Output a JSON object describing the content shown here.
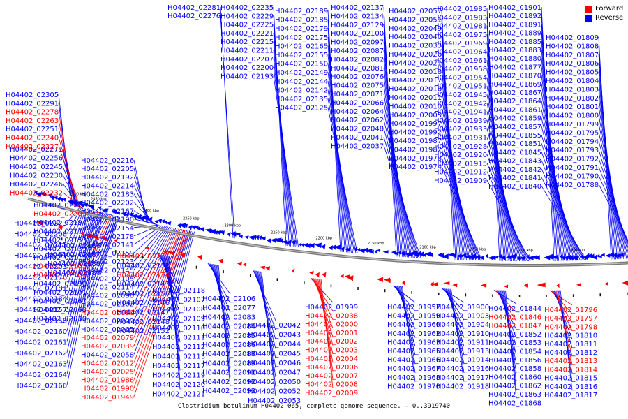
{
  "caption": "Clostridium botulinum H04402 065, complete genome sequence. - 0..3919740",
  "legend": [
    {
      "label": "Forward",
      "color": "#ff0000"
    },
    {
      "label": "Reverse",
      "color": "#0000ff"
    }
  ],
  "colors": {
    "forward": "#ff0000",
    "reverse": "#0000ff",
    "backbone": "#888888"
  },
  "scale_labels": [
    "2500 kbp",
    "2450 kbp",
    "2400 kbp",
    "2350 kbp",
    "2300 kbp",
    "2250 kbp",
    "2200 kbp",
    "2150 kbp",
    "2100 kbp",
    "2050 kbp",
    "2000 kbp",
    "1950 kbp"
  ],
  "label_columns": [
    [
      "H04402_02281",
      "H04402_02276"
    ],
    [
      "H04402_02235",
      "H04402_02229",
      "H04402_02225",
      "H04402_02221",
      "H04402_02215",
      "H04402_02211",
      "H04402_02207",
      "H04402_02200",
      "H04402_02193"
    ],
    [
      "H04402_02189",
      "H04402_02185",
      "H04402_02179",
      "H04402_02175",
      "H04402_02165",
      "H04402_02155",
      "H04402_02150",
      "H04402_02149",
      "H04402_02144",
      "H04402_02142",
      "H04402_02135",
      "H04402_02125"
    ],
    [
      "H04402_02137",
      "H04402_02134",
      "H04402_02129",
      "H04402_02100",
      "H04402_02097",
      "H04402_02087",
      "H04402_02082",
      "H04402_02081",
      "H04402_02076",
      "H04402_02075",
      "H04402_02071",
      "H04402_02066",
      "H04402_02064",
      "H04402_02062",
      "H04402_02048",
      "H04402_02041",
      "H04402_02037"
    ],
    [
      "H04402_02057",
      "H04402_02051",
      "H04402_02049",
      "H04402_02040",
      "H04402_02033",
      "H04402_02026",
      "H04402_02021",
      "H04402_02018",
      "H04402_02017",
      "H04402_02016",
      "H04402_02011",
      "H04402_02010",
      "H04402_02005",
      "H04402_01997",
      "H04402_01992",
      "H04402_01987",
      "H04402_01982",
      "H04402_01978",
      "H04402_01974"
    ],
    [
      "H04402_01985",
      "H04402_01983",
      "H04402_01981",
      "H04402_01975",
      "H04402_01969",
      "H04402_01964",
      "H04402_01961",
      "H04402_01958",
      "H04402_01954",
      "H04402_01951",
      "H04402_01945",
      "H04402_01942",
      "H04402_01941",
      "H04402_01939",
      "H04402_01933",
      "H04402_01931",
      "H04402_01928",
      "H04402_01920",
      "H04402_01915",
      "H04402_01912",
      "H04402_01909"
    ],
    [
      "H04402_01901",
      "H04402_01892",
      "H04402_01891",
      "H04402_01889",
      "H04402_01885",
      "H04402_01883",
      "H04402_01880",
      "H04402_01877",
      "H04402_01870",
      "H04402_01869",
      "H04402_01867",
      "H04402_01864",
      "H04402_01861",
      "H04402_01859",
      "H04402_01857",
      "H04402_01855",
      "H04402_01851",
      "H04402_01845",
      "H04402_01843",
      "H04402_01842",
      "H04402_01841",
      "H04402_01840"
    ],
    [
      "H04402_01809",
      "H04402_01808",
      "H04402_01807",
      "H04402_01806",
      "H04402_01805",
      "H04402_01804",
      "H04402_01803",
      "H04402_01802",
      "H04402_01801",
      "H04402_01800",
      "H04402_01799",
      "H04402_01795",
      "H04402_01794",
      "H04402_01793",
      "H04402_01792",
      "H04402_01791",
      "H04402_01790",
      "H04402_01788"
    ],
    [
      "H04402_02305",
      "H04402_02291",
      "H04402_02278",
      "H04402_02263",
      "H04402_02251",
      "H04402_02240",
      "H04402_02227"
    ],
    [
      "H04402_02271",
      "H04402_02256",
      "H04402_02245",
      "H04402_02230",
      "H04402_02246",
      "H04402_02232"
    ],
    [
      "H04402_02216",
      "H04402_02205",
      "H04402_02192",
      "H04402_02214",
      "H04402_02183",
      "H04402_02202",
      "H04402_02167",
      "H04402_02190",
      "H04402_02154",
      "H04402_02178",
      "H04402_02141",
      "H04402_02159",
      "H04402_02123",
      "H04402_02145",
      "H04402_02105",
      "H04402_02114",
      "H04402_02098",
      "H04402_02102",
      "H04402_02080",
      "H04402_02099",
      "H04402_02065",
      "H04402_02079",
      "H04402_02039",
      "H04402_02058",
      "H04402_02012",
      "H04402_02025",
      "H04402_01986",
      "H04402_01990",
      "H04402_01949"
    ],
    [
      "H04402_02222",
      "H04402_02209",
      "H04402_02194",
      "H04402_02177",
      "H04402_02153",
      "H04402_02139",
      "H04402_02115",
      "H04402_02103",
      "H04402_02104",
      "H04402_02090",
      "H04402_02101",
      "H04402_02067",
      "H04402_02068",
      "H04402_02030"
    ],
    [
      "H04402_02223",
      "H04402_02208",
      "H04402_02217",
      "H04402_02201",
      "H04402_02203",
      "H04402_02176",
      "H04402_02181",
      "H04402_02184",
      "H04402_02157",
      "H04402_02158",
      "H04402_02160",
      "H04402_02161",
      "H04402_02162",
      "H04402_02163",
      "H04402_02164",
      "H04402_02166"
    ],
    [
      "H04402_02186",
      "H04402_02187",
      "H04402_02188",
      "H04402_02180"
    ],
    [
      "H04402_02171",
      "H04402_02151",
      "H04402_02174",
      "H04402_02143",
      "H04402_02156",
      "H04402_02146",
      "H04402_02147",
      "H04402_02148",
      "H04402_02152"
    ],
    [
      "H04402_02118",
      "H04402_02107",
      "H04402_02108",
      "H04402_02109",
      "H04402_02110",
      "H04402_02111",
      "H04402_02112",
      "H04402_02113",
      "H04402_02117",
      "H04402_02119",
      "H04402_02120",
      "H04402_02121"
    ],
    [
      "H04402_02106",
      "H04402_02077",
      "H04402_02083",
      "H04402_02084",
      "H04402_02085",
      "H04402_02086",
      "H04402_02088",
      "H04402_02089",
      "H04402_02091",
      "H04402_02092",
      "H04402_02093"
    ],
    [
      "H04402_02042",
      "H04402_02043",
      "H04402_02044",
      "H04402_02045",
      "H04402_02046",
      "H04402_02047",
      "H04402_02050",
      "H04402_02052",
      "H04402_02053"
    ],
    [
      "H04402_01999",
      "H04402_02038",
      "H04402_02000",
      "H04402_02001",
      "H04402_02002",
      "H04402_02003",
      "H04402_02004",
      "H04402_02006",
      "H04402_02007",
      "H04402_02008",
      "H04402_02009"
    ],
    [
      "H04402_01957",
      "H04402_01959",
      "H04402_01960",
      "H04402_01962",
      "H04402_01963",
      "H04402_01965",
      "H04402_01966",
      "H04402_01967",
      "H04402_01968",
      "H04402_01970"
    ],
    [
      "H04402_01900",
      "H04402_01903",
      "H04402_01904",
      "H04402_01910",
      "H04402_01911",
      "H04402_01913",
      "H04402_01914",
      "H04402_01916",
      "H04402_01917",
      "H04402_01918"
    ],
    [
      "H04402_01844",
      "H04402_01846",
      "H04402_01847",
      "H04402_01852",
      "H04402_01853",
      "H04402_01854",
      "H04402_01856",
      "H04402_01858",
      "H04402_01860",
      "H04402_01862",
      "H04402_01863",
      "H04402_01868"
    ],
    [
      "H04402_01796",
      "H04402_01797",
      "H04402_01798",
      "H04402_01810",
      "H04402_01811",
      "H04402_01812",
      "H04402_01813",
      "H04402_01814",
      "H04402_01815",
      "H04402_01816",
      "H04402_01817"
    ]
  ]
}
